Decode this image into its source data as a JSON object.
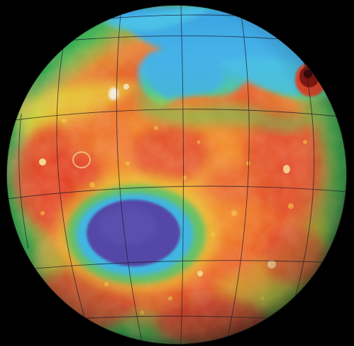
{
  "image": {
    "subject": "topographic-globe",
    "background_color": "#000000",
    "palette": {
      "lowest": "#4a3f9e",
      "low": "#3fa8e0",
      "mid_low": "#3ec67a",
      "mid": "#e8e23a",
      "mid_high": "#f2902a",
      "high": "#e23a2a",
      "peak": "#8a1a12",
      "summit_white": "#f4f1ea"
    }
  }
}
